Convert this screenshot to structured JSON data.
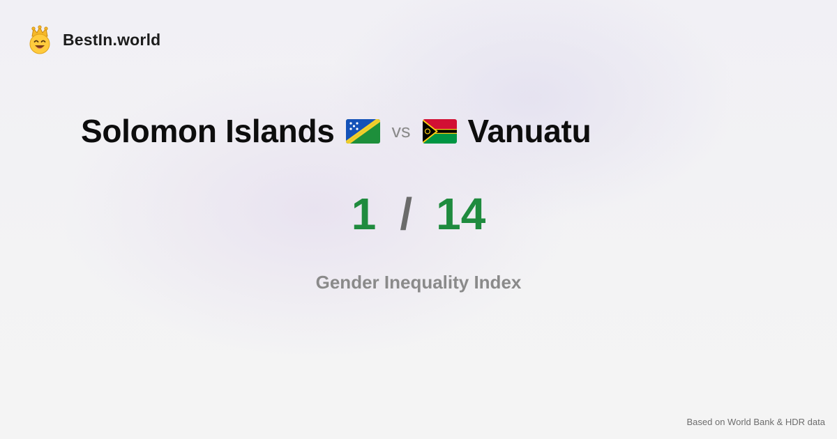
{
  "brand": {
    "name": "BestIn.world",
    "logo_icon": "crown-smiley-icon"
  },
  "comparison": {
    "country_a": {
      "name": "Solomon Islands",
      "flag_icon": "solomon-islands-flag-icon",
      "rank": "1"
    },
    "vs_label": "vs",
    "country_b": {
      "name": "Vanuatu",
      "flag_icon": "vanuatu-flag-icon",
      "rank": "14"
    },
    "separator": "/"
  },
  "metric": {
    "label": "Gender Inequality Index"
  },
  "footer": {
    "source": "Based on World Bank & HDR data"
  },
  "colors": {
    "rank": "#1f8b3e",
    "vs": "#8a8a8a",
    "metric": "#8a8a8a"
  }
}
